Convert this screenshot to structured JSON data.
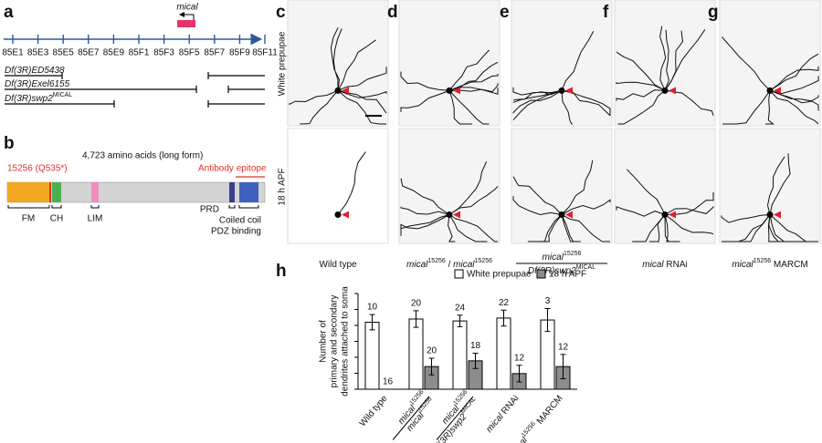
{
  "panel_labels": [
    "a",
    "b",
    "c",
    "d",
    "e",
    "f",
    "g",
    "h"
  ],
  "map": {
    "gene": "mical",
    "ticks": [
      "85E1",
      "85E3",
      "85E5",
      "85E7",
      "85E9",
      "85F1",
      "85F3",
      "85F5",
      "85F7",
      "85F9",
      "85F11"
    ],
    "deficiencies": [
      [
        {
          "text": "Df(3R)ED5438",
          "style": "italic"
        }
      ],
      [
        {
          "text": "Df(3R)Exel6155",
          "style": "italic"
        }
      ],
      [
        {
          "text": "Df(3R)swp2",
          "style": "italic"
        },
        {
          "text": "MICAL",
          "style": "sup"
        }
      ]
    ]
  },
  "protein": {
    "length_label": "4,723 amino acids (long form)",
    "mutation": "15256 (Q535*)",
    "epitope": "Antibody epitope",
    "domains": [
      "FM",
      "CH",
      "LIM",
      "PRD",
      "Coiled coil",
      "PDZ binding"
    ]
  },
  "images": {
    "rows": [
      "White prepupae",
      "18 h APF"
    ],
    "captions": [
      [
        [
          {
            "text": "Wild type",
            "style": "normal"
          }
        ]
      ],
      [
        [
          {
            "text": "mical",
            "style": "italic"
          },
          {
            "text": "15256",
            "style": "sup"
          },
          {
            "text": " / ",
            "style": "normal"
          },
          {
            "text": "mical",
            "style": "italic"
          },
          {
            "text": "15256",
            "style": "sup"
          }
        ]
      ],
      [
        [
          {
            "text": "mical",
            "style": "italic"
          },
          {
            "text": "15256",
            "style": "sup"
          }
        ],
        [
          {
            "text": "Df(3R)swp2",
            "style": "italic"
          },
          {
            "text": "MICAL",
            "style": "sup"
          }
        ]
      ],
      [
        [
          {
            "text": "mical",
            "style": "italic"
          },
          {
            "text": " RNAi",
            "style": "normal"
          }
        ]
      ],
      [
        [
          {
            "text": "mical",
            "style": "italic"
          },
          {
            "text": "15256",
            "style": "sup"
          },
          {
            "text": " MARCM",
            "style": "normal"
          }
        ]
      ]
    ]
  },
  "chart_data": {
    "type": "bar",
    "y_label": [
      "Number of",
      "primary and secondary",
      "dendrites attached to soma"
    ],
    "categories": [
      [
        [
          {
            "text": "Wild type",
            "style": "normal"
          }
        ]
      ],
      [
        [
          {
            "text": "mical",
            "style": "italic"
          },
          {
            "text": "15256",
            "style": "sup"
          }
        ],
        [
          {
            "text": "mical",
            "style": "italic"
          },
          {
            "text": "15256",
            "style": "sup"
          }
        ]
      ],
      [
        [
          {
            "text": "mical",
            "style": "italic"
          },
          {
            "text": "15256",
            "style": "sup"
          }
        ],
        [
          {
            "text": "Df(3R)swp2",
            "style": "italic"
          },
          {
            "text": "MICAL",
            "style": "sup"
          }
        ]
      ],
      [
        [
          {
            "text": "mical",
            "style": "italic"
          },
          {
            "text": " RNAi",
            "style": "normal"
          }
        ]
      ],
      [
        [
          {
            "text": "mical",
            "style": "italic"
          },
          {
            "text": "15256",
            "style": "sup"
          },
          {
            "text": " MARCM",
            "style": "normal"
          }
        ]
      ]
    ],
    "series": [
      {
        "name": "White prepupae",
        "color": "#ffffff",
        "values": [
          21,
          22,
          21.4,
          22.3,
          21.7
        ],
        "errors": [
          2.4,
          2.6,
          1.8,
          2.5,
          3.6
        ],
        "n": [
          "10",
          "20",
          "24",
          "22",
          "3"
        ]
      },
      {
        "name": "18 h APF",
        "color": "#8c8c8c",
        "values": [
          0,
          7.1,
          8.9,
          4.9,
          7.1
        ],
        "errors": [
          null,
          2.6,
          2.4,
          2.6,
          3.8
        ],
        "n": [
          "16",
          "20",
          "18",
          "12",
          "12"
        ]
      }
    ],
    "ylim": [
      0,
      30
    ],
    "yticks": [
      0,
      5,
      10,
      15,
      20,
      25,
      30
    ],
    "grid": false
  }
}
